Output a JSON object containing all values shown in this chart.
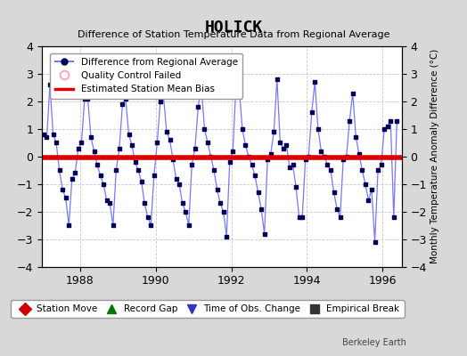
{
  "title": "HOLICK",
  "subtitle": "Difference of Station Temperature Data from Regional Average",
  "ylabel_right": "Monthly Temperature Anomaly Difference (°C)",
  "watermark": "Berkeley Earth",
  "xlim": [
    1987.0,
    1996.5
  ],
  "ylim": [
    -4,
    4
  ],
  "yticks": [
    -4,
    -3,
    -2,
    -1,
    0,
    1,
    2,
    3,
    4
  ],
  "xticks": [
    1988,
    1990,
    1992,
    1994,
    1996
  ],
  "bias_value": -0.05,
  "line_color": "#7777ff",
  "marker_color": "#000055",
  "bias_color": "#dd0000",
  "background_color": "#d8d8d8",
  "plot_bg_color": "#ffffff",
  "legend1_entries": [
    {
      "label": "Difference from Regional Average"
    },
    {
      "label": "Quality Control Failed"
    },
    {
      "label": "Estimated Station Mean Bias"
    }
  ],
  "legend2_entries": [
    {
      "label": "Station Move",
      "color": "#cc0000",
      "marker": "D"
    },
    {
      "label": "Record Gap",
      "color": "#007700",
      "marker": "^"
    },
    {
      "label": "Time of Obs. Change",
      "color": "#3333bb",
      "marker": "v"
    },
    {
      "label": "Empirical Break",
      "color": "#333333",
      "marker": "s"
    }
  ],
  "data_x": [
    1987.042,
    1987.125,
    1987.208,
    1987.292,
    1987.375,
    1987.458,
    1987.542,
    1987.625,
    1987.708,
    1987.792,
    1987.875,
    1987.958,
    1988.042,
    1988.125,
    1988.208,
    1988.292,
    1988.375,
    1988.458,
    1988.542,
    1988.625,
    1988.708,
    1988.792,
    1988.875,
    1988.958,
    1989.042,
    1989.125,
    1989.208,
    1989.292,
    1989.375,
    1989.458,
    1989.542,
    1989.625,
    1989.708,
    1989.792,
    1989.875,
    1989.958,
    1990.042,
    1990.125,
    1990.208,
    1990.292,
    1990.375,
    1990.458,
    1990.542,
    1990.625,
    1990.708,
    1990.792,
    1990.875,
    1990.958,
    1991.042,
    1991.125,
    1991.208,
    1991.292,
    1991.375,
    1991.458,
    1991.542,
    1991.625,
    1991.708,
    1991.792,
    1991.875,
    1991.958,
    1992.042,
    1992.125,
    1992.208,
    1992.292,
    1992.375,
    1992.458,
    1992.542,
    1992.625,
    1992.708,
    1992.792,
    1992.875,
    1992.958,
    1993.042,
    1993.125,
    1993.208,
    1993.292,
    1993.375,
    1993.458,
    1993.542,
    1993.625,
    1993.708,
    1993.792,
    1993.875,
    1993.958,
    1994.042,
    1994.125,
    1994.208,
    1994.292,
    1994.375,
    1994.458,
    1994.542,
    1994.625,
    1994.708,
    1994.792,
    1994.875,
    1994.958,
    1995.042,
    1995.125,
    1995.208,
    1995.292,
    1995.375,
    1995.458,
    1995.542,
    1995.625,
    1995.708,
    1995.792,
    1995.875,
    1995.958,
    1996.042,
    1996.125,
    1996.208,
    1996.292,
    1996.375
  ],
  "data_y": [
    0.8,
    0.7,
    2.6,
    0.8,
    0.5,
    -0.5,
    -1.2,
    -1.5,
    -2.5,
    -0.8,
    -0.6,
    0.3,
    0.5,
    2.1,
    2.1,
    0.7,
    0.2,
    -0.3,
    -0.7,
    -1.0,
    -1.6,
    -1.7,
    -2.5,
    -0.5,
    0.3,
    1.9,
    2.1,
    0.8,
    0.4,
    -0.2,
    -0.5,
    -0.9,
    -1.7,
    -2.2,
    -2.5,
    -0.7,
    0.5,
    2.0,
    2.2,
    0.9,
    0.6,
    -0.1,
    -0.8,
    -1.0,
    -1.7,
    -2.0,
    -2.5,
    -0.3,
    0.3,
    1.8,
    2.6,
    1.0,
    0.5,
    0.0,
    -0.5,
    -1.2,
    -1.7,
    -2.0,
    -2.9,
    -0.2,
    0.2,
    2.6,
    2.5,
    1.0,
    0.4,
    0.0,
    -0.3,
    -0.7,
    -1.3,
    -1.9,
    -2.8,
    -0.1,
    0.1,
    0.9,
    2.8,
    0.5,
    0.3,
    0.4,
    -0.4,
    -0.3,
    -1.1,
    -2.2,
    -2.2,
    -0.1,
    0.0,
    1.6,
    2.7,
    1.0,
    0.2,
    0.0,
    -0.3,
    -0.5,
    -1.3,
    -1.9,
    -2.2,
    -0.1,
    0.0,
    1.3,
    2.3,
    0.7,
    0.1,
    -0.5,
    -1.0,
    -1.6,
    -1.2,
    -3.1,
    -0.5,
    -0.3,
    1.0,
    1.1,
    1.3,
    -2.2,
    1.3
  ]
}
